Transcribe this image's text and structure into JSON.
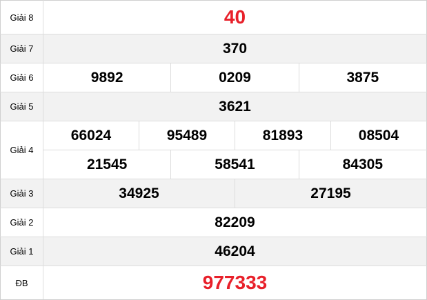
{
  "prizes": {
    "g8": {
      "label": "Giải 8",
      "numbers": [
        "40"
      ]
    },
    "g7": {
      "label": "Giải 7",
      "numbers": [
        "370"
      ]
    },
    "g6": {
      "label": "Giải 6",
      "numbers": [
        "9892",
        "0209",
        "3875"
      ]
    },
    "g5": {
      "label": "Giải 5",
      "numbers": [
        "3621"
      ]
    },
    "g4": {
      "label": "Giải 4",
      "numbers": [
        "66024",
        "95489",
        "81893",
        "08504",
        "21545",
        "58541",
        "84305"
      ]
    },
    "g3": {
      "label": "Giải 3",
      "numbers": [
        "34925",
        "27195"
      ]
    },
    "g2": {
      "label": "Giải 2",
      "numbers": [
        "82209"
      ]
    },
    "g1": {
      "label": "Giải 1",
      "numbers": [
        "46204"
      ]
    },
    "db": {
      "label": "ĐB",
      "numbers": [
        "977333"
      ]
    }
  },
  "colors": {
    "highlight": "#e8202a",
    "alt_row": "#f2f2f2",
    "border": "#dcdcdc"
  }
}
